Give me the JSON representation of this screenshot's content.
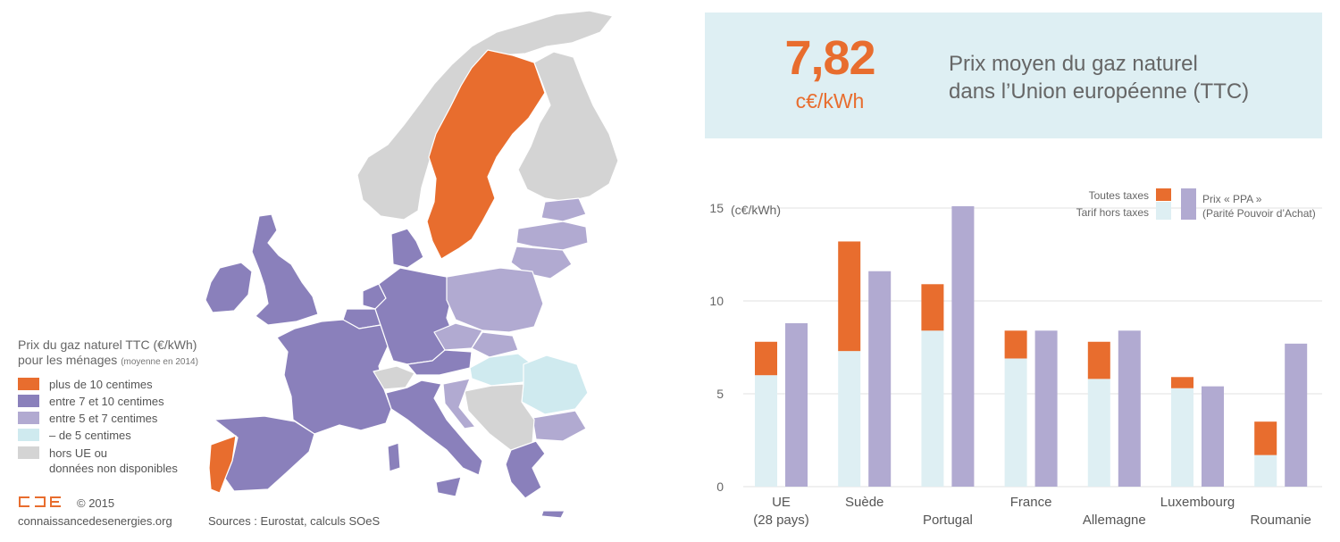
{
  "headline": {
    "value": "7,82",
    "unit": "c€/kWh",
    "line1": "Prix moyen du gaz naturel",
    "line2": "dans l’Union européenne (TTC)"
  },
  "map_legend": {
    "title1": "Prix du gaz naturel TTC (€/kWh)",
    "title2": "pour les ménages",
    "title_note": "(moyenne en 2014)",
    "items": [
      {
        "label": "plus de 10 centimes",
        "color": "#e86d2e"
      },
      {
        "label": "entre 7 et 10 centimes",
        "color": "#8a80bb"
      },
      {
        "label": "entre 5 et 7 centimes",
        "color": "#b1aad1"
      },
      {
        "label": "– de 5 centimes",
        "color": "#cfeaef"
      },
      {
        "label": "hors UE ou",
        "label2": "données non disponibles",
        "color": "#d4d4d4"
      }
    ]
  },
  "footer": {
    "logo": "CDE",
    "copyright": "© 2015",
    "site": "connaissancedesenergies.org",
    "sources": "Sources : Eurostat, calculs SOeS"
  },
  "colors": {
    "orange": "#e86d2e",
    "dark_purple": "#8a80bb",
    "light_purple": "#b1aad1",
    "light_blue": "#deeff3",
    "grey": "#d4d4d4"
  },
  "chart_data": {
    "type": "bar",
    "ylabel": "(c€/kWh)",
    "ylim": [
      0,
      15
    ],
    "yticks": [
      0,
      5,
      10,
      15
    ],
    "grid": true,
    "legend_position": "top-right",
    "categories": [
      {
        "label": "UE",
        "label2": "(28 pays)",
        "row": 0
      },
      {
        "label": "Suède",
        "label2": "",
        "row": 0
      },
      {
        "label": "Portugal",
        "label2": "",
        "row": 1
      },
      {
        "label": "France",
        "label2": "",
        "row": 0
      },
      {
        "label": "Allemagne",
        "label2": "",
        "row": 1
      },
      {
        "label": "Luxembourg",
        "label2": "",
        "row": 0
      },
      {
        "label": "Roumanie",
        "label2": "",
        "row": 1
      }
    ],
    "series": [
      {
        "name": "Tarif hors taxes",
        "color": "#deeff3",
        "values": [
          6.0,
          7.3,
          8.4,
          6.9,
          5.8,
          5.3,
          1.7
        ]
      },
      {
        "name": "Toutes taxes",
        "color": "#e86d2e",
        "values": [
          7.8,
          13.2,
          10.9,
          8.4,
          7.8,
          5.9,
          3.5
        ]
      },
      {
        "name": "Prix « PPA »",
        "name2": "(Parité Pouvoir d’Achat)",
        "color": "#b1aad1",
        "values": [
          8.8,
          11.6,
          15.1,
          8.4,
          8.4,
          5.4,
          7.7
        ]
      }
    ]
  }
}
